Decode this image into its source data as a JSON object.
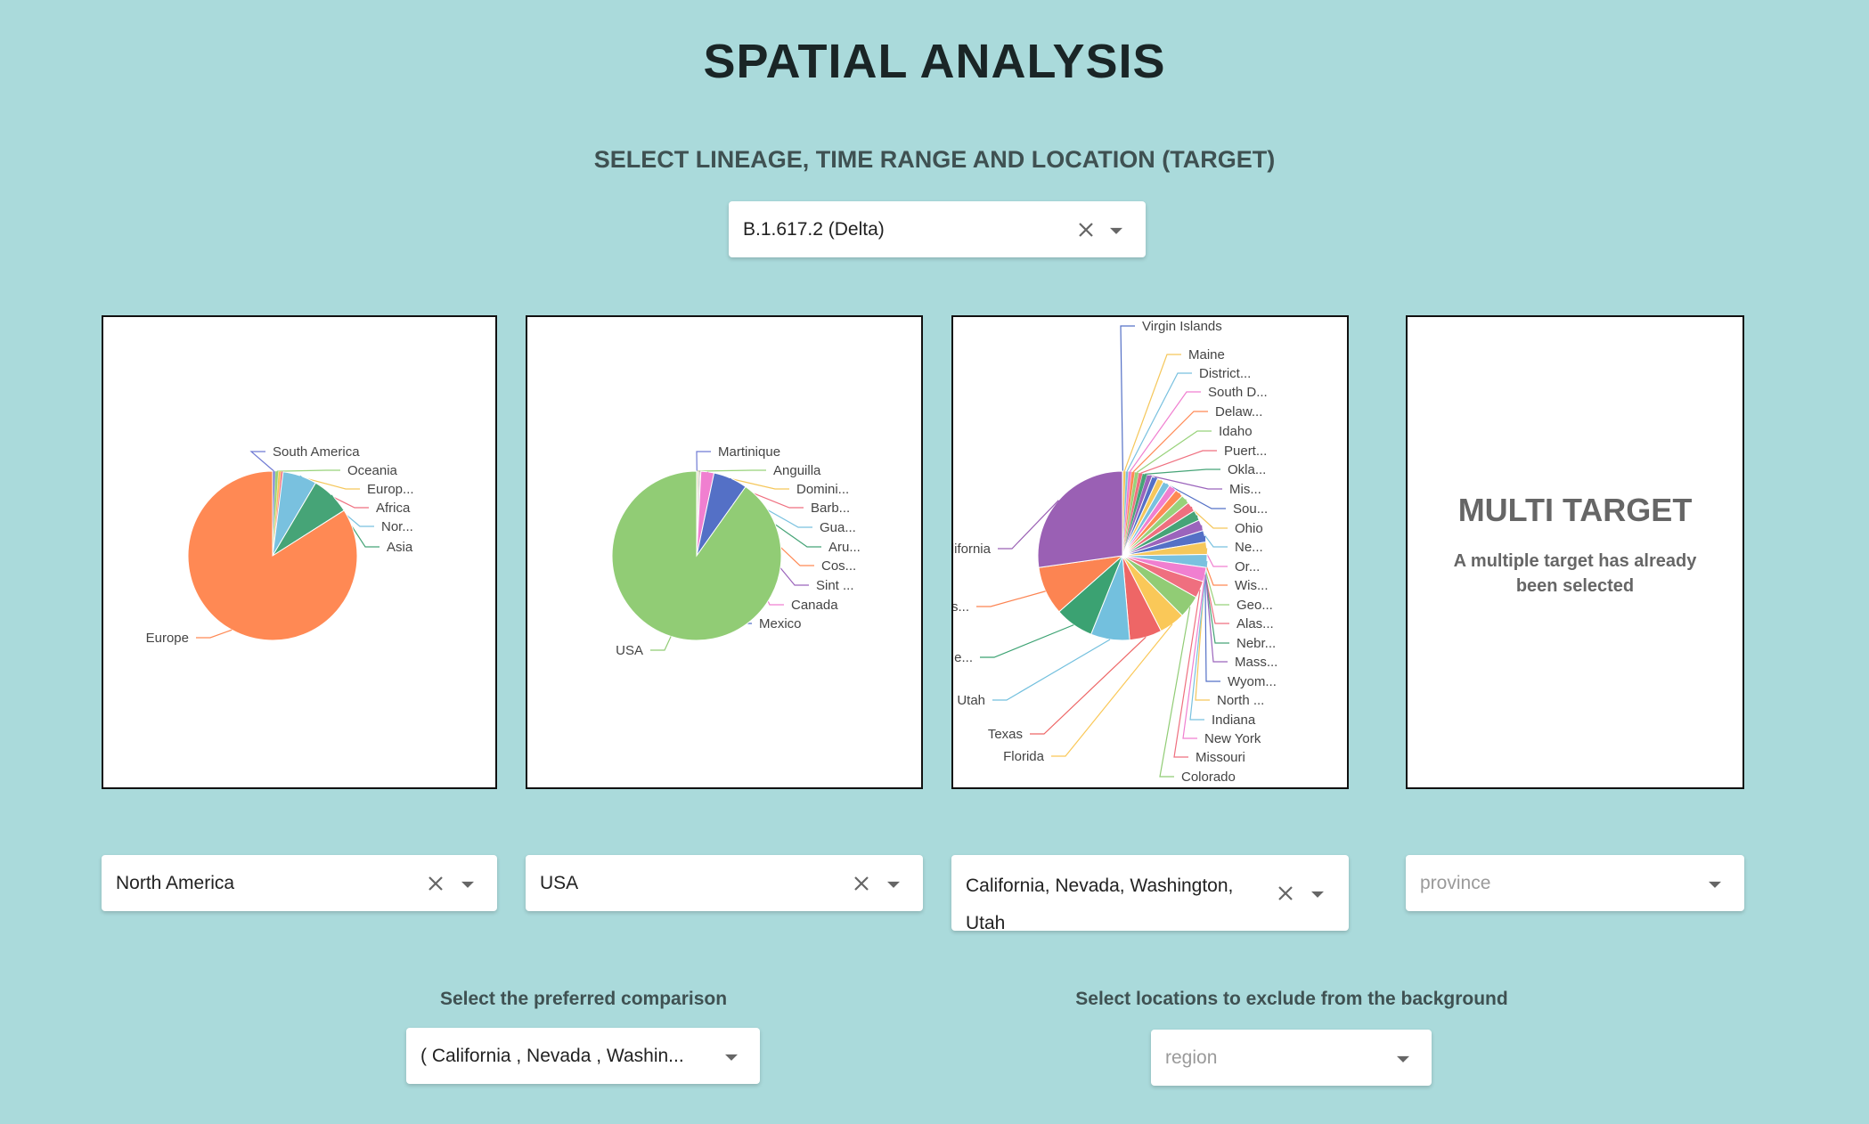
{
  "page": {
    "title": "SPATIAL ANALYSIS",
    "subtitle": "SELECT LINEAGE, TIME RANGE AND LOCATION (TARGET)"
  },
  "lineage_select": {
    "value": "B.1.617.2 (Delta)"
  },
  "location_selects": [
    {
      "value": "North America"
    },
    {
      "value": "USA"
    },
    {
      "value": "California, Nevada, Washington, Utah"
    },
    {
      "placeholder": "province"
    }
  ],
  "multi_target": {
    "title": "MULTI TARGET",
    "text": "A multiple target has already been selected"
  },
  "comparison": {
    "label": "Select the preferred comparison",
    "value": "( California , Nevada , Washin..."
  },
  "exclude": {
    "label": "Select locations to exclude from the background",
    "placeholder": "region"
  },
  "icons": {
    "clear": "close-icon",
    "dropdown": "chevron-down-icon"
  },
  "chart_data": [
    {
      "type": "pie",
      "labels": [
        "South America",
        "Oceania",
        "Europ...",
        "Africa",
        "Nor...",
        "Asia",
        "Europe"
      ],
      "values": [
        0.5,
        0.6,
        0.5,
        0.4,
        6.5,
        7.5,
        84
      ],
      "colors": [
        "#6f7ad3",
        "#98d27a",
        "#f5c75b",
        "#ef6f7f",
        "#79c1df",
        "#46a477",
        "#ff8954"
      ]
    },
    {
      "type": "pie",
      "labels": [
        "Martinique",
        "Anguilla",
        "Domini...",
        "Barb...",
        "Gua...",
        "Aru...",
        "Cos...",
        "Sint ...",
        "Canada",
        "Mexico",
        "USA"
      ],
      "values": [
        0.1,
        0.1,
        0.1,
        0.1,
        0.1,
        0.1,
        0.1,
        0.1,
        2.5,
        6.5,
        90
      ],
      "colors": [
        "#6f7ad3",
        "#98d27a",
        "#f5c75b",
        "#ef6f7f",
        "#79c1df",
        "#46a477",
        "#ff8954",
        "#9b64bc",
        "#f07fd0",
        "#5470c6",
        "#91cc75"
      ]
    },
    {
      "type": "pie",
      "labels": [
        "Virgin Islands",
        "Maine",
        "District...",
        "South D...",
        "Delaw...",
        "Idaho",
        "Puert...",
        "Okla...",
        "Mis...",
        "Sou...",
        "Ohio",
        "Ne...",
        "Or...",
        "Wis...",
        "Geo...",
        "Alas...",
        "Nebr...",
        "Mass...",
        "Wyom...",
        "North ...",
        "Indiana",
        "New York",
        "Missouri",
        "Colorado",
        "Florida",
        "Texas",
        "Utah",
        "Ne...",
        "Was...",
        "California"
      ],
      "values": [
        0.1,
        0.4,
        0.4,
        0.5,
        0.5,
        0.6,
        0.6,
        0.7,
        0.8,
        0.9,
        1.0,
        1.1,
        1.2,
        1.3,
        1.4,
        1.5,
        1.6,
        1.7,
        1.8,
        1.9,
        2.0,
        2.2,
        2.6,
        3.5,
        4.0,
        5.0,
        6.0,
        6.0,
        7.5,
        22.0
      ],
      "colors": [
        "#5470c6",
        "#f5c75b",
        "#79c1df",
        "#f07fd0",
        "#ff8954",
        "#98d27a",
        "#ef6f7f",
        "#46a477",
        "#9b64bc",
        "#5470c6",
        "#f5c75b",
        "#79c1df",
        "#f07fd0",
        "#ff8954",
        "#98d27a",
        "#ef6f7f",
        "#46a477",
        "#9b64bc",
        "#5470c6",
        "#f5c75b",
        "#79c1df",
        "#f07fd0",
        "#ef6f7f",
        "#91cc75",
        "#fac858",
        "#ee6666",
        "#73c0de",
        "#3ba272",
        "#fc8452",
        "#9a60b4"
      ]
    }
  ]
}
